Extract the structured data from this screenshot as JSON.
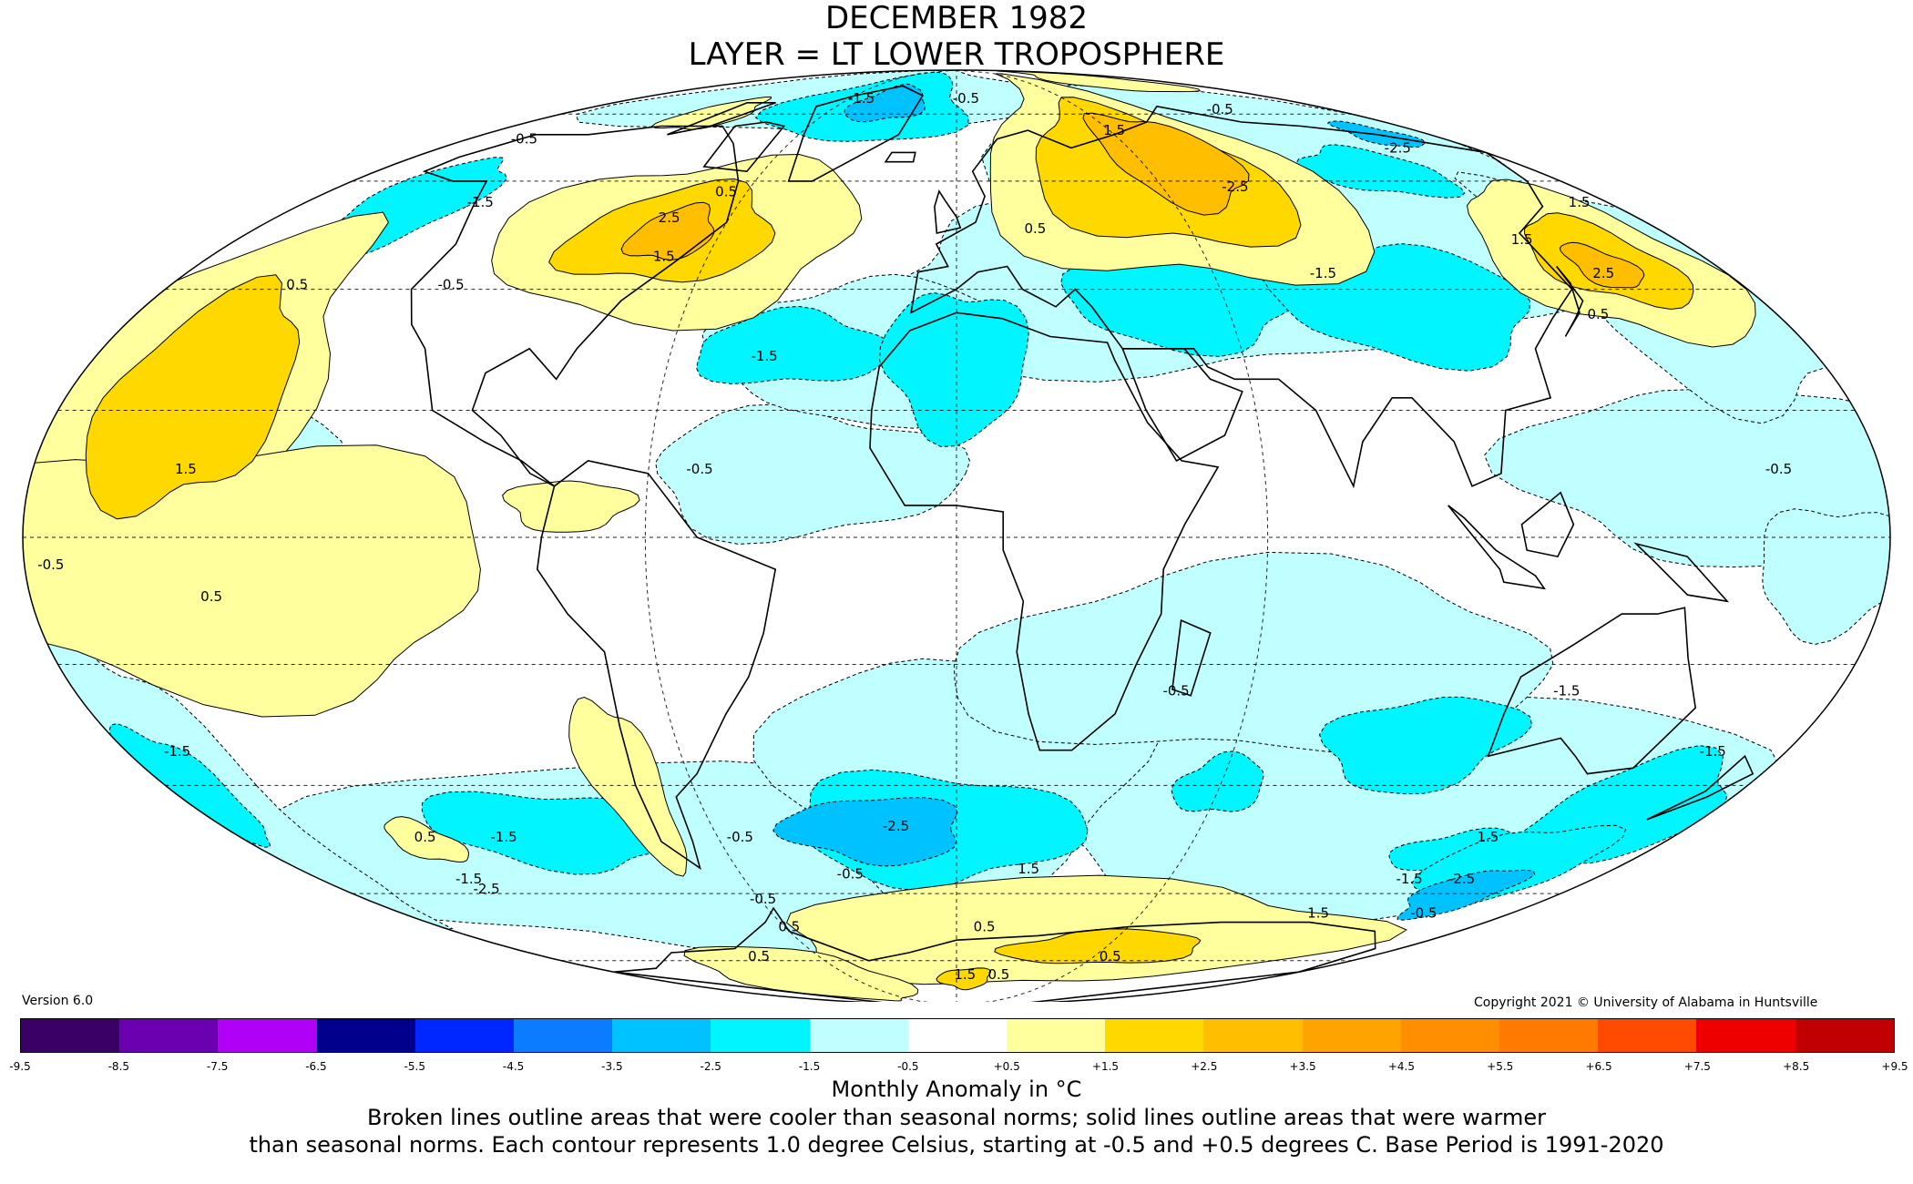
{
  "title": {
    "line1": "DECEMBER 1982",
    "line2": "LAYER = LT LOWER TROPOSPHERE"
  },
  "version": "Version 6.0",
  "copyright": "Copyright 2021 © University of Alabama in Huntsville",
  "legend": {
    "ticks": [
      "-9.5",
      "-8.5",
      "-7.5",
      "-6.5",
      "-5.5",
      "-4.5",
      "-3.5",
      "-2.5",
      "-1.5",
      "-0.5",
      "+0.5",
      "+1.5",
      "+2.5",
      "+3.5",
      "+4.5",
      "+5.5",
      "+6.5",
      "+7.5",
      "+8.5",
      "+9.5"
    ],
    "colors": [
      "#3a0066",
      "#6a00b0",
      "#b000f5",
      "#00008c",
      "#0027ff",
      "#0a7cff",
      "#00c2ff",
      "#00f5ff",
      "#bfffff",
      "#ffffff",
      "#ffff9e",
      "#ffd800",
      "#ffbe00",
      "#ffa300",
      "#ff8e00",
      "#ff7a00",
      "#ff4a00",
      "#ee0000",
      "#c00000"
    ],
    "unit_label": "Monthly Anomaly in °C"
  },
  "caption": {
    "line1": "Broken lines outline areas that were cooler than seasonal norms; solid lines outline areas that were warmer",
    "line2": "than seasonal norms. Each contour represents 1.0 degree Celsius, starting at -0.5 and +0.5 degrees C. Base Period is 1991-2020"
  },
  "map": {
    "projection": "Mollweide",
    "contour_labels": [
      {
        "text": "-0.5",
        "lon": -155,
        "lat": 68
      },
      {
        "text": "-1.5",
        "lon": -50,
        "lat": 78
      },
      {
        "text": "-0.5",
        "lon": 5,
        "lat": 78
      },
      {
        "text": "1.5",
        "lon": 60,
        "lat": 70
      },
      {
        "text": "-2.5",
        "lon": 80,
        "lat": 58
      },
      {
        "text": "-0.5",
        "lon": 120,
        "lat": 75
      },
      {
        "text": "-2.5",
        "lon": 150,
        "lat": 66
      },
      {
        "text": "1.5",
        "lon": 170,
        "lat": 55
      },
      {
        "text": "0.5",
        "lon": -65,
        "lat": 57
      },
      {
        "text": "2.5",
        "lon": -75,
        "lat": 52
      },
      {
        "text": "1.5",
        "lon": -70,
        "lat": 45
      },
      {
        "text": "-1.5",
        "lon": -130,
        "lat": 55
      },
      {
        "text": "0.5",
        "lon": -150,
        "lat": 40
      },
      {
        "text": "1.5",
        "lon": -150,
        "lat": 10
      },
      {
        "text": "-0.5",
        "lon": -115,
        "lat": 40
      },
      {
        "text": "-1.5",
        "lon": -40,
        "lat": 28
      },
      {
        "text": "-0.5",
        "lon": -50,
        "lat": 10
      },
      {
        "text": "0.5",
        "lon": 20,
        "lat": 50
      },
      {
        "text": "-1.5",
        "lon": 85,
        "lat": 42
      },
      {
        "text": "1.5",
        "lon": 140,
        "lat": 48
      },
      {
        "text": "2.5",
        "lon": 150,
        "lat": 42
      },
      {
        "text": "0.5",
        "lon": 140,
        "lat": 35
      },
      {
        "text": "-0.5",
        "lon": 160,
        "lat": 10
      },
      {
        "text": "-0.5",
        "lon": -175,
        "lat": -5
      },
      {
        "text": "0.5",
        "lon": -145,
        "lat": -10
      },
      {
        "text": "-1.5",
        "lon": -170,
        "lat": -35
      },
      {
        "text": "0.5",
        "lon": -135,
        "lat": -50
      },
      {
        "text": "-1.5",
        "lon": -115,
        "lat": -50
      },
      {
        "text": "-1.5",
        "lon": -140,
        "lat": -58
      },
      {
        "text": "-2.5",
        "lon": -140,
        "lat": -60
      },
      {
        "text": "-0.5",
        "lon": 45,
        "lat": -25
      },
      {
        "text": "-1.5",
        "lon": 125,
        "lat": -25
      },
      {
        "text": "-1.5",
        "lon": 165,
        "lat": -35
      },
      {
        "text": "1.5",
        "lon": 135,
        "lat": -50
      },
      {
        "text": "-1.5",
        "lon": 130,
        "lat": -58
      },
      {
        "text": "-2.5",
        "lon": 145,
        "lat": -58
      },
      {
        "text": "-0.5",
        "lon": 155,
        "lat": -65
      },
      {
        "text": "-2.5",
        "lon": -15,
        "lat": -48
      },
      {
        "text": "1.5",
        "lon": 20,
        "lat": -56
      },
      {
        "text": "-0.5",
        "lon": -30,
        "lat": -57
      },
      {
        "text": "-0.5",
        "lon": -60,
        "lat": -62
      },
      {
        "text": "-0.5",
        "lon": -55,
        "lat": -50
      },
      {
        "text": "0.5",
        "lon": -60,
        "lat": -68
      },
      {
        "text": "0.5",
        "lon": -90,
        "lat": -75
      },
      {
        "text": "0.5",
        "lon": 10,
        "lat": -68
      },
      {
        "text": "1.5",
        "lon": 5,
        "lat": -80
      },
      {
        "text": "0.5",
        "lon": 25,
        "lat": -80
      },
      {
        "text": "0.5",
        "lon": 70,
        "lat": -75
      },
      {
        "text": "1.5",
        "lon": 120,
        "lat": -65
      }
    ]
  }
}
